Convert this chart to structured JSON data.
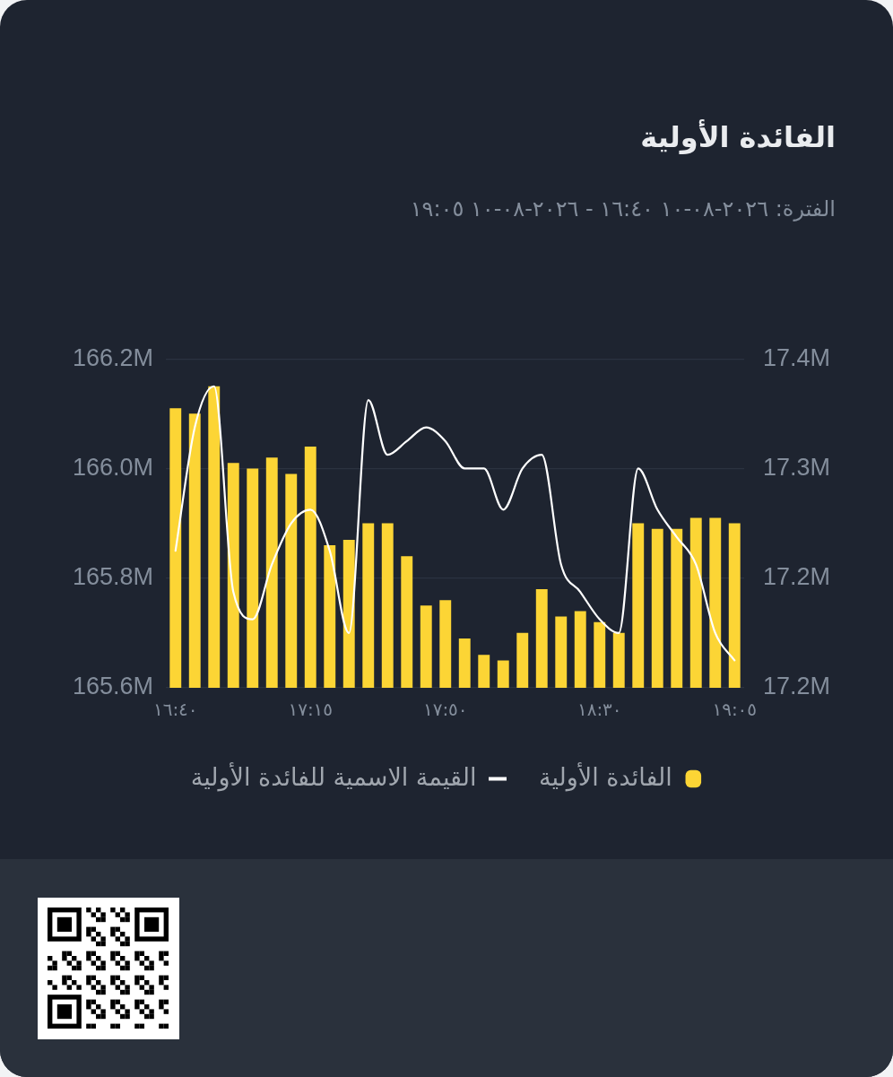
{
  "chart_data": {
    "type": "bar",
    "title": "الفائدة الأولية",
    "subtitle": "الفترة: ٢٠٢٦-٠٨-١٠ ١٦:٤٠ - ٢٠٢٦-٠٨-١٠ ١٩:٠٥",
    "categories": [
      "١٦:٤٠",
      null,
      null,
      null,
      null,
      null,
      null,
      "١٧:١٥",
      null,
      null,
      null,
      null,
      null,
      null,
      "١٧:٥٠",
      null,
      null,
      null,
      null,
      null,
      null,
      null,
      "١٨:٣٠",
      null,
      null,
      null,
      null,
      null,
      null,
      "١٩:٠٥"
    ],
    "series": [
      {
        "name": "الفائدة الأولية",
        "color": "#fcd535",
        "values": [
          166.11,
          166.1,
          166.15,
          166.01,
          166.0,
          166.02,
          165.99,
          166.04,
          165.86,
          165.87,
          165.9,
          165.9,
          165.84,
          165.75,
          165.76,
          165.69,
          165.66,
          165.65,
          165.7,
          165.78,
          165.73,
          165.74,
          165.72,
          165.7,
          165.9,
          165.89,
          165.89,
          165.91,
          165.91,
          165.9
        ]
      },
      {
        "name": "القيمة الاسمية للفائدة الأولية",
        "type": "line",
        "axis": "y2",
        "color": "#ffffff",
        "values": [
          17.26,
          17.35,
          17.38,
          17.23,
          17.21,
          17.25,
          17.28,
          17.29,
          17.26,
          17.2,
          17.37,
          17.33,
          17.34,
          17.35,
          17.34,
          17.32,
          17.32,
          17.29,
          17.32,
          17.33,
          17.25,
          17.23,
          17.21,
          17.2,
          17.32,
          17.29,
          17.27,
          17.25,
          17.2,
          17.18
        ]
      }
    ],
    "ylim": [
      165.6,
      166.2
    ],
    "yticks": [
      {
        "value": 165.6,
        "label": "165.6M"
      },
      {
        "value": 165.8,
        "label": "165.8M"
      },
      {
        "value": 166.0,
        "label": "166.0M"
      },
      {
        "value": 166.2,
        "label": "166.2M"
      }
    ],
    "y2lim": [
      17.16,
      17.4
    ],
    "y2ticks": [
      {
        "value": 17.16,
        "label": "17.2M"
      },
      {
        "value": 17.24,
        "label": "17.2M"
      },
      {
        "value": 17.32,
        "label": "17.3M"
      },
      {
        "value": 17.4,
        "label": "17.4M"
      }
    ],
    "grid": "y",
    "legend": "bottom",
    "marker": "none"
  }
}
